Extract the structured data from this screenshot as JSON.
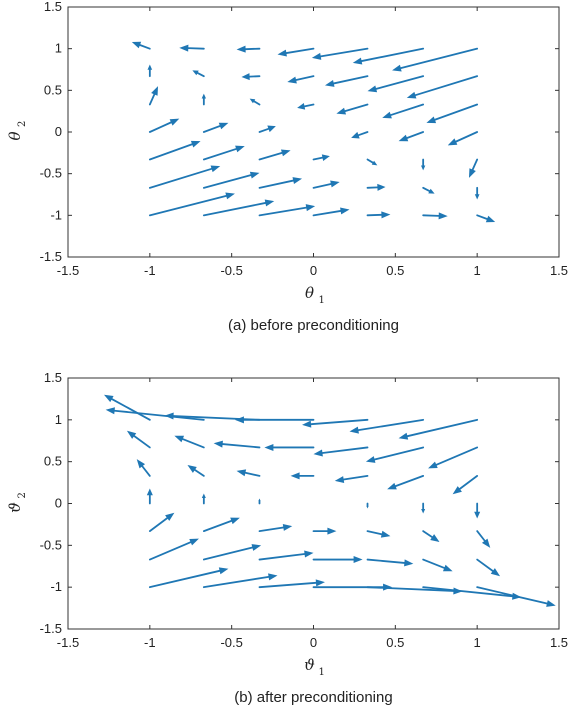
{
  "colors": {
    "arrow": "#1f77b4",
    "axis": "#333333"
  },
  "chart_data": [
    {
      "type": "quiver",
      "caption": "(a) before preconditioning",
      "xlabel": {
        "symbol": "θ",
        "subscript": "1"
      },
      "ylabel": {
        "symbol": "θ",
        "subscript": "2"
      },
      "xlim": [
        -1.5,
        1.5
      ],
      "ylim": [
        -1.5,
        1.5
      ],
      "xticks": [
        "-1.5",
        "-1",
        "-0.5",
        "0",
        "0.5",
        "1",
        "1.5"
      ],
      "yticks": [
        "1.5",
        "1",
        "0.5",
        "0",
        "-0.5",
        "-1",
        "-1.5"
      ],
      "grid": false,
      "arrows": [
        {
          "x": -1.0,
          "y": -1.0,
          "u": 0.52,
          "v": 0.26
        },
        {
          "x": -0.67,
          "y": -1.0,
          "u": 0.43,
          "v": 0.17
        },
        {
          "x": -0.33,
          "y": -1.0,
          "u": 0.34,
          "v": 0.11
        },
        {
          "x": 0.0,
          "y": -1.0,
          "u": 0.22,
          "v": 0.07
        },
        {
          "x": 0.33,
          "y": -1.0,
          "u": 0.14,
          "v": 0.01
        },
        {
          "x": 0.67,
          "y": -1.0,
          "u": 0.15,
          "v": -0.01
        },
        {
          "x": 1.0,
          "y": -1.0,
          "u": 0.11,
          "v": -0.08
        },
        {
          "x": -1.0,
          "y": -0.67,
          "u": 0.43,
          "v": 0.26
        },
        {
          "x": -0.67,
          "y": -0.67,
          "u": 0.34,
          "v": 0.18
        },
        {
          "x": -0.33,
          "y": -0.67,
          "u": 0.26,
          "v": 0.11
        },
        {
          "x": 0.0,
          "y": -0.67,
          "u": 0.16,
          "v": 0.07
        },
        {
          "x": 0.33,
          "y": -0.67,
          "u": 0.11,
          "v": 0.01
        },
        {
          "x": 0.67,
          "y": -0.67,
          "u": 0.07,
          "v": -0.07
        },
        {
          "x": 1.0,
          "y": -0.67,
          "u": 0.0,
          "v": -0.14
        },
        {
          "x": -1.0,
          "y": -0.33,
          "u": 0.31,
          "v": 0.22
        },
        {
          "x": -0.67,
          "y": -0.33,
          "u": 0.25,
          "v": 0.16
        },
        {
          "x": -0.33,
          "y": -0.33,
          "u": 0.19,
          "v": 0.11
        },
        {
          "x": 0.0,
          "y": -0.33,
          "u": 0.1,
          "v": 0.04
        },
        {
          "x": 0.33,
          "y": -0.33,
          "u": 0.06,
          "v": -0.07
        },
        {
          "x": 0.67,
          "y": -0.33,
          "u": 0.0,
          "v": -0.13
        },
        {
          "x": 1.0,
          "y": -0.33,
          "u": -0.05,
          "v": -0.22
        },
        {
          "x": -1.0,
          "y": 0.0,
          "u": 0.18,
          "v": 0.16
        },
        {
          "x": -0.67,
          "y": 0.0,
          "u": 0.15,
          "v": 0.11
        },
        {
          "x": -0.33,
          "y": 0.0,
          "u": 0.1,
          "v": 0.07
        },
        {
          "x": 0.33,
          "y": 0.0,
          "u": -0.1,
          "v": -0.07
        },
        {
          "x": 0.67,
          "y": 0.0,
          "u": -0.15,
          "v": -0.11
        },
        {
          "x": 1.0,
          "y": 0.0,
          "u": -0.18,
          "v": -0.16
        },
        {
          "x": -1.0,
          "y": 0.33,
          "u": 0.05,
          "v": 0.22
        },
        {
          "x": -0.67,
          "y": 0.33,
          "u": 0.0,
          "v": 0.13
        },
        {
          "x": -0.33,
          "y": 0.33,
          "u": -0.06,
          "v": 0.07
        },
        {
          "x": 0.0,
          "y": 0.33,
          "u": -0.1,
          "v": -0.04
        },
        {
          "x": 0.33,
          "y": 0.33,
          "u": -0.19,
          "v": -0.11
        },
        {
          "x": 0.67,
          "y": 0.33,
          "u": -0.25,
          "v": -0.16
        },
        {
          "x": 1.0,
          "y": 0.33,
          "u": -0.31,
          "v": -0.22
        },
        {
          "x": -1.0,
          "y": 0.67,
          "u": 0.0,
          "v": 0.14
        },
        {
          "x": -0.67,
          "y": 0.67,
          "u": -0.07,
          "v": 0.07
        },
        {
          "x": -0.33,
          "y": 0.67,
          "u": -0.11,
          "v": -0.01
        },
        {
          "x": 0.0,
          "y": 0.67,
          "u": -0.16,
          "v": -0.07
        },
        {
          "x": 0.33,
          "y": 0.67,
          "u": -0.26,
          "v": -0.11
        },
        {
          "x": 0.67,
          "y": 0.67,
          "u": -0.34,
          "v": -0.18
        },
        {
          "x": 1.0,
          "y": 0.67,
          "u": -0.43,
          "v": -0.26
        },
        {
          "x": -1.0,
          "y": 1.0,
          "u": -0.11,
          "v": 0.08
        },
        {
          "x": -0.67,
          "y": 1.0,
          "u": -0.15,
          "v": 0.01
        },
        {
          "x": -0.33,
          "y": 1.0,
          "u": -0.14,
          "v": -0.01
        },
        {
          "x": 0.0,
          "y": 1.0,
          "u": -0.22,
          "v": -0.07
        },
        {
          "x": 0.33,
          "y": 1.0,
          "u": -0.34,
          "v": -0.11
        },
        {
          "x": 0.67,
          "y": 1.0,
          "u": -0.43,
          "v": -0.17
        },
        {
          "x": 1.0,
          "y": 1.0,
          "u": -0.52,
          "v": -0.26
        }
      ]
    },
    {
      "type": "quiver",
      "caption": "(b) after preconditioning",
      "xlabel": {
        "symbol": "ϑ",
        "subscript": "1"
      },
      "ylabel": {
        "symbol": "ϑ",
        "subscript": "2"
      },
      "xlim": [
        -1.5,
        1.5
      ],
      "ylim": [
        -1.5,
        1.5
      ],
      "xticks": [
        "-1.5",
        "-1",
        "-0.5",
        "0",
        "0.5",
        "1",
        "1.5"
      ],
      "yticks": [
        "1.5",
        "1",
        "0.5",
        "0",
        "-0.5",
        "-1",
        "-1.5"
      ],
      "grid": false,
      "arrows": [
        {
          "x": -1.0,
          "y": -1.0,
          "u": 0.48,
          "v": 0.22
        },
        {
          "x": -0.67,
          "y": -1.0,
          "u": 0.45,
          "v": 0.14
        },
        {
          "x": -0.33,
          "y": -1.0,
          "u": 0.4,
          "v": 0.06
        },
        {
          "x": 0.0,
          "y": -1.0,
          "u": 0.48,
          "v": 0.0
        },
        {
          "x": 0.33,
          "y": -1.0,
          "u": 0.58,
          "v": -0.05
        },
        {
          "x": 0.67,
          "y": -1.0,
          "u": 0.6,
          "v": -0.12
        },
        {
          "x": 1.0,
          "y": -1.0,
          "u": 0.48,
          "v": -0.22
        },
        {
          "x": -1.0,
          "y": -0.67,
          "u": 0.3,
          "v": 0.25
        },
        {
          "x": -0.67,
          "y": -0.67,
          "u": 0.35,
          "v": 0.17
        },
        {
          "x": -0.33,
          "y": -0.67,
          "u": 0.33,
          "v": 0.08
        },
        {
          "x": 0.0,
          "y": -0.67,
          "u": 0.3,
          "v": 0.0
        },
        {
          "x": 0.33,
          "y": -0.67,
          "u": 0.28,
          "v": -0.05
        },
        {
          "x": 0.67,
          "y": -0.67,
          "u": 0.18,
          "v": -0.14
        },
        {
          "x": 1.0,
          "y": -0.67,
          "u": 0.14,
          "v": -0.2
        },
        {
          "x": -1.0,
          "y": -0.33,
          "u": 0.15,
          "v": 0.22
        },
        {
          "x": -0.67,
          "y": -0.33,
          "u": 0.22,
          "v": 0.16
        },
        {
          "x": -0.33,
          "y": -0.33,
          "u": 0.2,
          "v": 0.06
        },
        {
          "x": 0.0,
          "y": -0.33,
          "u": 0.14,
          "v": 0.0
        },
        {
          "x": 0.33,
          "y": -0.33,
          "u": 0.14,
          "v": -0.06
        },
        {
          "x": 0.67,
          "y": -0.33,
          "u": 0.1,
          "v": -0.13
        },
        {
          "x": 1.0,
          "y": -0.33,
          "u": 0.08,
          "v": -0.2
        },
        {
          "x": -1.0,
          "y": 0.0,
          "u": 0.0,
          "v": 0.18
        },
        {
          "x": -0.67,
          "y": 0.0,
          "u": 0.0,
          "v": 0.12
        },
        {
          "x": -0.33,
          "y": 0.0,
          "u": 0.0,
          "v": 0.06
        },
        {
          "x": 0.33,
          "y": 0.0,
          "u": 0.0,
          "v": -0.06
        },
        {
          "x": 0.67,
          "y": 0.0,
          "u": 0.0,
          "v": -0.12
        },
        {
          "x": 1.0,
          "y": 0.0,
          "u": 0.0,
          "v": -0.18
        },
        {
          "x": -1.0,
          "y": 0.33,
          "u": -0.08,
          "v": 0.2
        },
        {
          "x": -0.67,
          "y": 0.33,
          "u": -0.1,
          "v": 0.13
        },
        {
          "x": -0.33,
          "y": 0.33,
          "u": -0.14,
          "v": 0.06
        },
        {
          "x": 0.0,
          "y": 0.33,
          "u": -0.14,
          "v": 0.0
        },
        {
          "x": 0.33,
          "y": 0.33,
          "u": -0.2,
          "v": -0.06
        },
        {
          "x": 0.67,
          "y": 0.33,
          "u": -0.22,
          "v": -0.16
        },
        {
          "x": 1.0,
          "y": 0.33,
          "u": -0.15,
          "v": -0.22
        },
        {
          "x": -1.0,
          "y": 0.67,
          "u": -0.14,
          "v": 0.2
        },
        {
          "x": -0.67,
          "y": 0.67,
          "u": -0.18,
          "v": 0.14
        },
        {
          "x": -0.33,
          "y": 0.67,
          "u": -0.28,
          "v": 0.05
        },
        {
          "x": 0.0,
          "y": 0.67,
          "u": -0.3,
          "v": 0.0
        },
        {
          "x": 0.33,
          "y": 0.67,
          "u": -0.33,
          "v": -0.08
        },
        {
          "x": 0.67,
          "y": 0.67,
          "u": -0.35,
          "v": -0.17
        },
        {
          "x": 1.0,
          "y": 0.67,
          "u": -0.3,
          "v": -0.25
        },
        {
          "x": -1.0,
          "y": 1.0,
          "u": -0.28,
          "v": 0.3
        },
        {
          "x": -0.67,
          "y": 1.0,
          "u": -0.6,
          "v": 0.12
        },
        {
          "x": -0.33,
          "y": 1.0,
          "u": -0.58,
          "v": 0.05
        },
        {
          "x": 0.0,
          "y": 1.0,
          "u": -0.48,
          "v": 0.0
        },
        {
          "x": 0.33,
          "y": 1.0,
          "u": -0.4,
          "v": -0.06
        },
        {
          "x": 0.67,
          "y": 1.0,
          "u": -0.45,
          "v": -0.14
        },
        {
          "x": 1.0,
          "y": 1.0,
          "u": -0.48,
          "v": -0.22
        }
      ]
    }
  ]
}
